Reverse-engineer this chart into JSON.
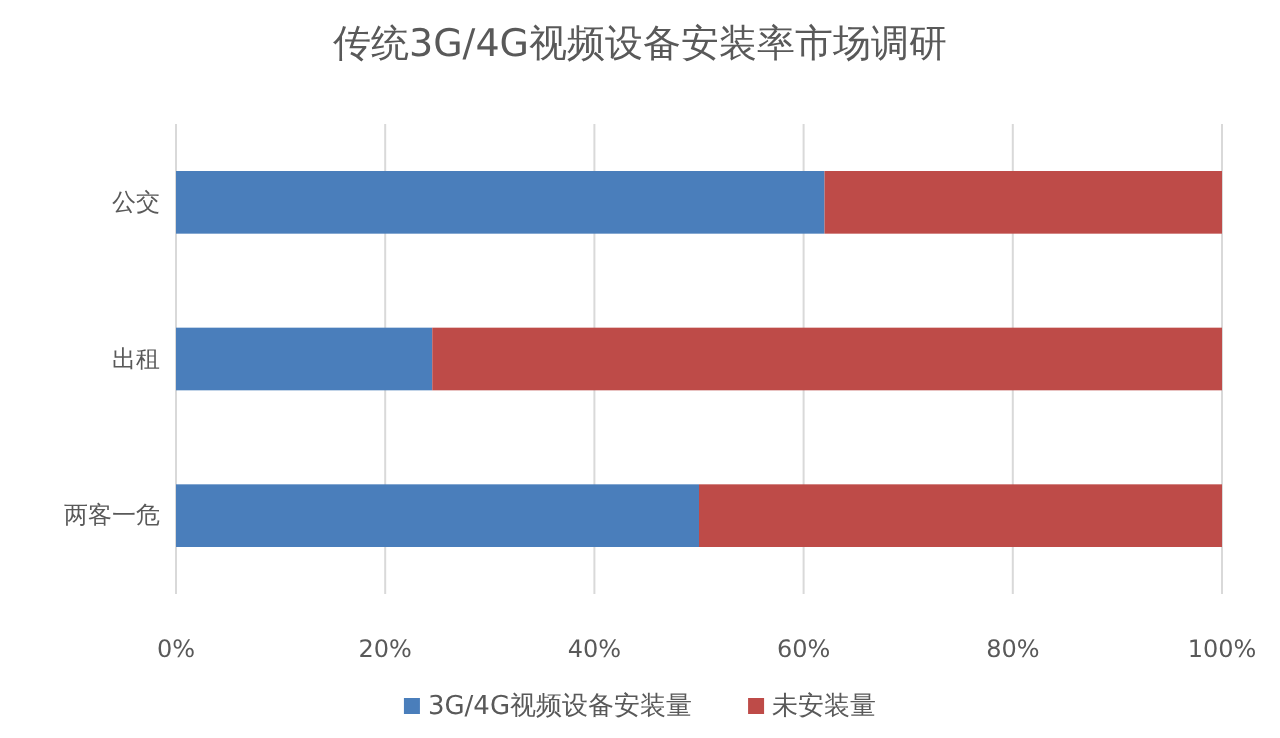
{
  "chart_data": {
    "type": "bar",
    "orientation": "horizontal",
    "stacked": true,
    "title": "传统3G/4G视频设备安装率市场调研",
    "categories": [
      "公交",
      "出租",
      "两客一危"
    ],
    "series": [
      {
        "name": "3G/4G视频设备安装量",
        "color": "#4a7ebb",
        "values": [
          62,
          24.5,
          50
        ]
      },
      {
        "name": "未安装量",
        "color": "#be4b48",
        "values": [
          38,
          75.5,
          50
        ]
      }
    ],
    "xlim": [
      0,
      100
    ],
    "xticks": [
      {
        "value": 0,
        "label": "0%"
      },
      {
        "value": 20,
        "label": "20%"
      },
      {
        "value": 40,
        "label": "40%"
      },
      {
        "value": 60,
        "label": "60%"
      },
      {
        "value": 80,
        "label": "80%"
      },
      {
        "value": 100,
        "label": "100%"
      }
    ],
    "grid": "x",
    "legend": "bottom"
  }
}
